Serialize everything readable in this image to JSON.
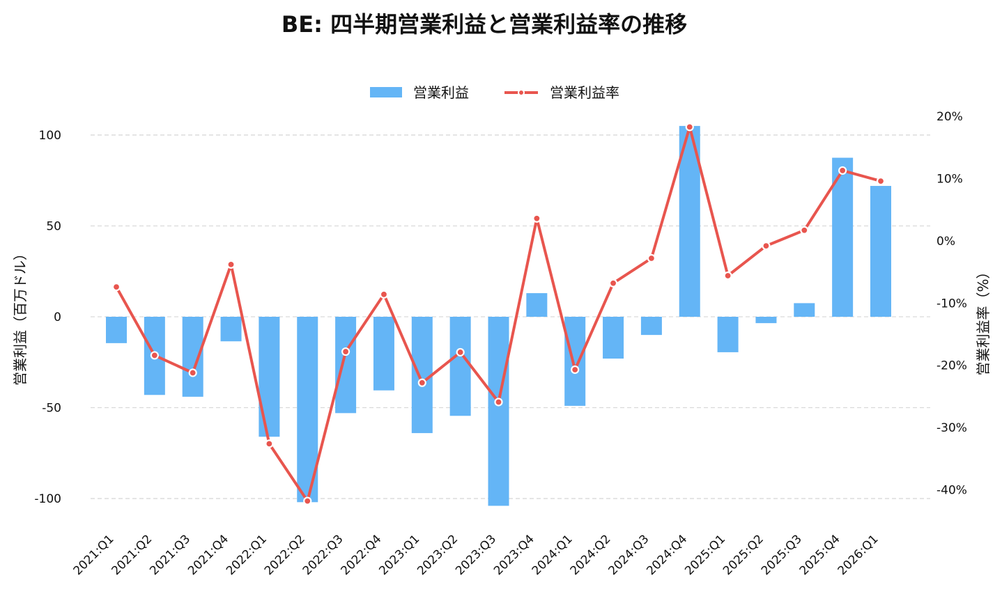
{
  "chart_data": {
    "type": "bar",
    "title": "BE: 四半期営業利益と営業利益率の推移",
    "categories": [
      "2021:Q1",
      "2021:Q2",
      "2021:Q3",
      "2021:Q4",
      "2022:Q1",
      "2022:Q2",
      "2022:Q3",
      "2022:Q4",
      "2023:Q1",
      "2023:Q2",
      "2023:Q3",
      "2023:Q4",
      "2024:Q1",
      "2024:Q2",
      "2024:Q3",
      "2024:Q4",
      "2025:Q1",
      "2025:Q2",
      "2025:Q3",
      "2025:Q4",
      "2026:Q1"
    ],
    "series": [
      {
        "name": "営業利益",
        "type": "bar",
        "axis": "left",
        "color": "#64b5f6",
        "values": [
          -14.5,
          -43,
          -44,
          -13.5,
          -66,
          -102,
          -53,
          -40.5,
          -64,
          -54.5,
          -104,
          13,
          -49,
          -23,
          -10,
          105,
          -19.5,
          -3.5,
          7.5,
          87.5,
          72
        ]
      },
      {
        "name": "営業利益率",
        "type": "line",
        "axis": "right",
        "color": "#e8554e",
        "values": [
          -7.4,
          -18.4,
          -21.2,
          -3.8,
          -32.6,
          -41.8,
          -17.8,
          -8.6,
          -22.8,
          -17.9,
          -25.9,
          3.6,
          -20.7,
          -6.8,
          -2.8,
          18.3,
          -5.6,
          -0.8,
          1.7,
          11.3,
          9.6
        ]
      }
    ],
    "xlabel": "",
    "ylabel": "営業利益（百万ドル）",
    "y2label": "営業利益率（%）",
    "ylim": [
      -113,
      113
    ],
    "y2lim": [
      -45.2,
      20.8
    ],
    "yticks": [
      -100,
      -50,
      0,
      50,
      100
    ],
    "y2ticks": [
      -40,
      -30,
      -20,
      -10,
      0,
      10,
      20
    ],
    "y2tick_suffix": "%",
    "grid": true,
    "legend": "top-center"
  }
}
